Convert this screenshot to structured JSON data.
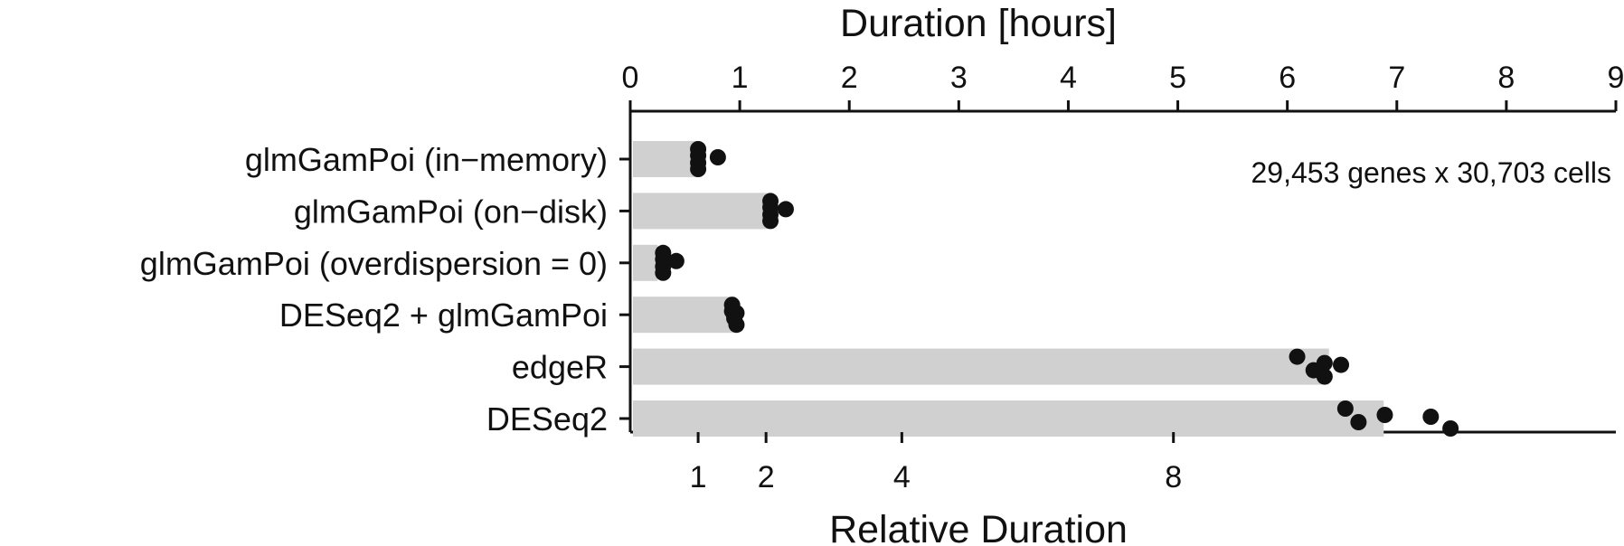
{
  "chart_data": {
    "type": "bar",
    "orientation": "horizontal",
    "top_axis": {
      "label": "Duration [hours]",
      "ticks": [
        0,
        1,
        2,
        3,
        4,
        5,
        6,
        7,
        8,
        9
      ],
      "range": [
        0,
        9
      ]
    },
    "bottom_axis": {
      "label": "Relative Duration",
      "ticks": [
        1,
        2,
        4,
        8
      ],
      "scale": "log2"
    },
    "annotation": "29,453 genes x 30,703 cells",
    "categories": [
      "glmGamPoi (in−memory)",
      "glmGamPoi (on−disk)",
      "glmGamPoi (overdispersion = 0)",
      "DESeq2 + glmGamPoi",
      "edgeR",
      "DESeq2"
    ],
    "values": [
      0.62,
      1.25,
      0.25,
      0.96,
      6.38,
      6.88
    ],
    "points": [
      [
        0.62,
        0.62,
        0.62,
        0.62,
        0.8
      ],
      [
        1.28,
        1.28,
        1.28,
        1.28,
        1.42
      ],
      [
        0.3,
        0.3,
        0.3,
        0.3,
        0.42
      ],
      [
        0.93,
        0.93,
        0.95,
        0.97,
        0.97
      ],
      [
        6.09,
        6.34,
        6.24,
        6.34,
        6.49
      ],
      [
        6.53,
        6.89,
        6.65,
        7.49,
        7.31
      ]
    ]
  }
}
